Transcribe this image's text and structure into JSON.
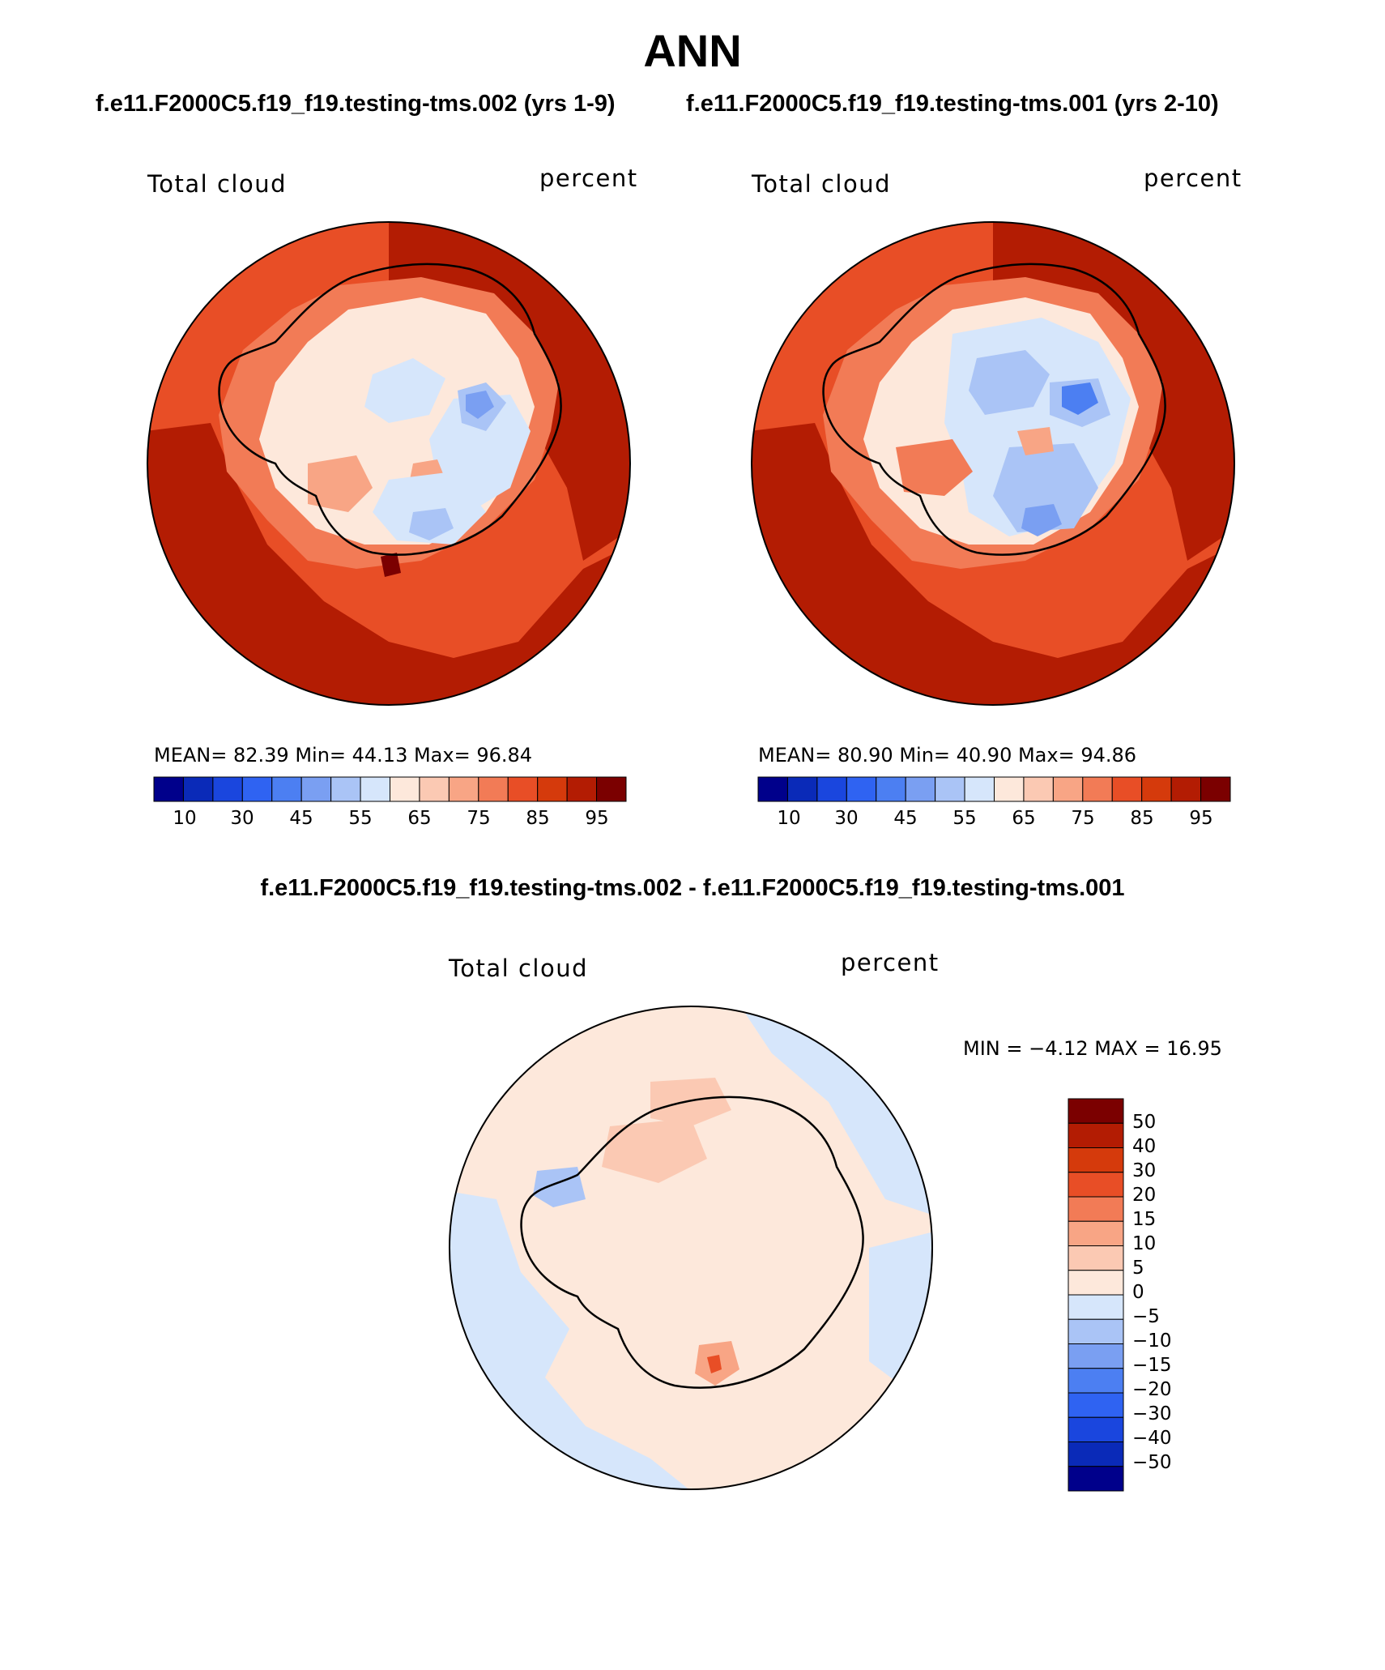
{
  "title": "ANN",
  "panel_titles": {
    "left": "f.e11.F2000C5.f19_f19.testing-tms.002 (yrs 1-9)",
    "right": "f.e11.F2000C5.f19_f19.testing-tms.001 (yrs 2-10)"
  },
  "diff_title": "f.e11.F2000C5.f19_f19.testing-tms.002 - f.e11.F2000C5.f19_f19.testing-tms.001",
  "maps": [
    {
      "id": "case-002",
      "variable": "Total cloud",
      "units": "percent",
      "stats_line": "MEAN=   82.39   Min=    44.13   Max=   96.84",
      "stats": {
        "mean": 82.39,
        "min": 44.13,
        "max": 96.84
      }
    },
    {
      "id": "case-001",
      "variable": "Total cloud",
      "units": "percent",
      "stats_line": "MEAN=   80.90   Min=    40.90   Max=   94.86",
      "stats": {
        "mean": 80.9,
        "min": 40.9,
        "max": 94.86
      }
    },
    {
      "id": "difference",
      "variable": "Total cloud",
      "units": "percent",
      "stats_line": "MIN =   −4.12  MAX =    16.95",
      "stats": {
        "min": -4.12,
        "max": 16.95
      }
    }
  ],
  "colorbar_abs": {
    "colors": [
      "#00008b",
      "#0a2ab8",
      "#1a46de",
      "#2f63f2",
      "#4c7ff2",
      "#7a9ff2",
      "#aac4f6",
      "#d6e6fb",
      "#fde8db",
      "#fbc9b3",
      "#f8a585",
      "#f27b56",
      "#e84e26",
      "#d53a0c",
      "#b31c03",
      "#7b0000"
    ],
    "tick_labels": [
      "10",
      "30",
      "45",
      "55",
      "65",
      "75",
      "85",
      "95"
    ]
  },
  "colorbar_diff": {
    "colors": [
      "#7b0000",
      "#b31c03",
      "#d53a0c",
      "#e84e26",
      "#f27b56",
      "#f8a585",
      "#fbc9b3",
      "#fde8db",
      "#d6e6fb",
      "#aac4f6",
      "#7a9ff2",
      "#4c7ff2",
      "#2f63f2",
      "#1a46de",
      "#0a2ab8",
      "#00008b"
    ],
    "tick_labels": [
      "50",
      "40",
      "30",
      "20",
      "15",
      "10",
      "5",
      "0",
      "−5",
      "−10",
      "−15",
      "−20",
      "−30",
      "−40",
      "−50"
    ]
  }
}
